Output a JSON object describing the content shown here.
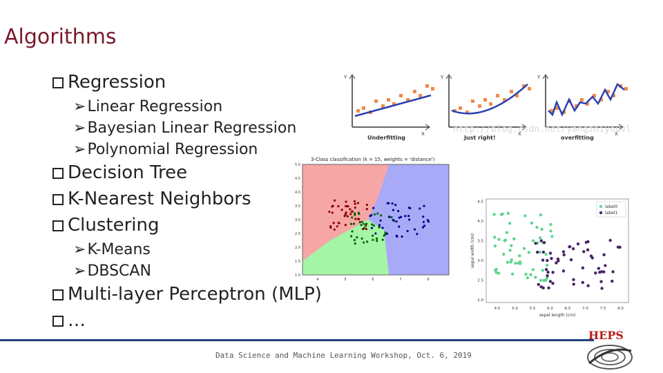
{
  "slide": {
    "title": "Algorithms",
    "bullets": [
      {
        "level": 1,
        "text": "Regression"
      },
      {
        "level": 2,
        "text": "Linear Regression"
      },
      {
        "level": 2,
        "text": "Bayesian Linear Regression"
      },
      {
        "level": 2,
        "text": "Polynomial Regression"
      },
      {
        "level": 1,
        "text": "Decision Tree"
      },
      {
        "level": 1,
        "text": "K-Nearest Neighbors"
      },
      {
        "level": 1,
        "text": "Clustering"
      },
      {
        "level": 2,
        "text": "K-Means"
      },
      {
        "level": 2,
        "text": "DBSCAN"
      },
      {
        "level": 1,
        "text": "Multi-layer Perceptron (MLP)"
      },
      {
        "level": 1,
        "text": "…"
      }
    ],
    "footer": "Data Science and Machine Learning Workshop, Oct. 6, 2019",
    "logo_text": "HEPS",
    "watermark": "http://blog.csdn.net/yangzhiyouvl"
  },
  "fitting": {
    "panels": [
      {
        "caption": "Underfitting",
        "x_axis": "X",
        "y_axis": "Y"
      },
      {
        "caption": "Just right!",
        "x_axis": "X",
        "y_axis": "Y"
      },
      {
        "caption": "overfitting",
        "x_axis": "X",
        "y_axis": "Y"
      }
    ],
    "colors": {
      "points": "#f08a4b",
      "fit": "#2a3fb0"
    }
  },
  "knn": {
    "title": "3-Class classification (k = 15, weights = 'distance')",
    "yticks": [
      "1.0",
      "1.5",
      "2.0",
      "2.5",
      "3.0",
      "3.5",
      "4.0",
      "4.5",
      "5.0"
    ],
    "xticks": [
      "4",
      "5",
      "6",
      "7",
      "8"
    ],
    "colors": {
      "region_a": "#f7a6a6",
      "region_b": "#a6f5a6",
      "region_c": "#a9aaf7",
      "pt_a": "#8b0000",
      "pt_b": "#006400",
      "pt_c": "#00008b"
    }
  },
  "scatter": {
    "xlabel": "sepal length (cm)",
    "ylabel": "sepal width (cm)",
    "xticks": [
      "4.5",
      "5.0",
      "5.5",
      "6.0",
      "6.5",
      "7.0",
      "7.5",
      "8.0"
    ],
    "yticks": [
      "2.0",
      "2.5",
      "3.0",
      "3.5",
      "4.0",
      "4.5"
    ],
    "legend": [
      "label0",
      "label1"
    ],
    "colors": {
      "label0": "#5fd68f",
      "label1": "#4b2466"
    }
  }
}
